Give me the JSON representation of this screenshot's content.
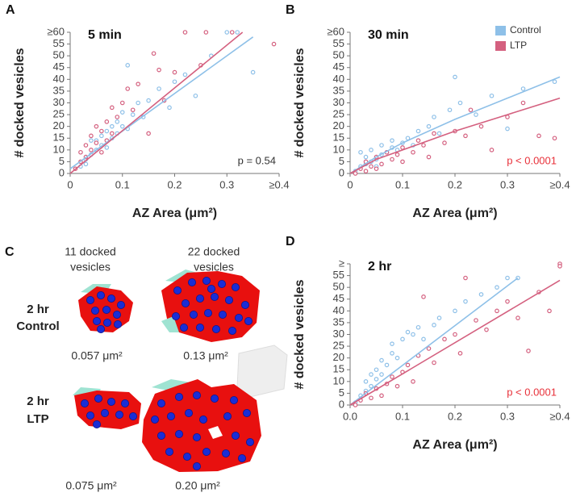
{
  "chart_data": [
    {
      "type": "scatter",
      "panel": "A",
      "title": "5 min",
      "annotation": "p = 0.54",
      "annotation_color": "#333333",
      "x_label": "AZ Area (μm²)",
      "y_label": "# docked vesicles",
      "xlim": [
        0,
        0.4
      ],
      "ylim": [
        0,
        60
      ],
      "xticks": [
        0,
        0.1,
        0.2,
        0.3,
        {
          "value": 0.4,
          "label": "≥0.4"
        }
      ],
      "yticks": [
        0,
        5,
        10,
        15,
        20,
        25,
        30,
        35,
        40,
        45,
        50,
        55,
        {
          "value": 60,
          "label": "≥60"
        }
      ],
      "series": [
        {
          "color": "#8ec0e8",
          "x": [
            0.02,
            0.03,
            0.04,
            0.05,
            0.05,
            0.06,
            0.06,
            0.07,
            0.07,
            0.08,
            0.08,
            0.09,
            0.09,
            0.1,
            0.1,
            0.11,
            0.11,
            0.12,
            0.13,
            0.14,
            0.15,
            0.17,
            0.19,
            0.2,
            0.22,
            0.24,
            0.27,
            0.3,
            0.32,
            0.35,
            0.04,
            0.03
          ],
          "values": [
            3,
            6,
            8,
            10,
            14,
            12,
            16,
            11,
            18,
            15,
            20,
            22,
            17,
            20,
            26,
            19,
            46,
            25,
            30,
            24,
            31,
            36,
            28,
            39,
            42,
            33,
            50,
            60,
            60,
            43,
            14,
            4
          ]
        },
        {
          "color": "#d4607f",
          "x": [
            0.01,
            0.02,
            0.02,
            0.03,
            0.03,
            0.04,
            0.04,
            0.05,
            0.05,
            0.06,
            0.06,
            0.07,
            0.07,
            0.08,
            0.08,
            0.09,
            0.1,
            0.11,
            0.12,
            0.13,
            0.15,
            0.16,
            0.17,
            0.18,
            0.2,
            0.22,
            0.25,
            0.26,
            0.31,
            0.39
          ],
          "values": [
            2,
            5,
            9,
            7,
            12,
            10,
            16,
            13,
            20,
            18,
            9,
            22,
            14,
            17,
            28,
            24,
            30,
            36,
            27,
            38,
            17,
            51,
            44,
            31,
            43,
            60,
            46,
            60,
            60,
            55
          ]
        }
      ],
      "fits": [
        {
          "color": "#8ec0e8",
          "x": [
            0,
            0.35
          ],
          "values": [
            2,
            58
          ]
        },
        {
          "color": "#d4607f",
          "x": [
            0,
            0.33
          ],
          "values": [
            0,
            60
          ]
        }
      ]
    },
    {
      "type": "scatter",
      "panel": "B",
      "title": "30 min",
      "annotation": "p < 0.0001",
      "annotation_color": "#e8313a",
      "x_label": "AZ Area (μm²)",
      "y_label": "# docked vesicles",
      "xlim": [
        0,
        0.4
      ],
      "ylim": [
        0,
        60
      ],
      "xticks": [
        0,
        0.1,
        0.2,
        0.3,
        {
          "value": 0.4,
          "label": "≥0.4"
        }
      ],
      "yticks": [
        0,
        5,
        10,
        15,
        20,
        25,
        30,
        35,
        40,
        45,
        50,
        55,
        {
          "value": 60,
          "label": "≥60"
        }
      ],
      "legend": "upper right",
      "series": [
        {
          "name": "Control",
          "color": "#8ec0e8",
          "x": [
            0.01,
            0.02,
            0.02,
            0.03,
            0.03,
            0.04,
            0.04,
            0.05,
            0.05,
            0.06,
            0.06,
            0.07,
            0.08,
            0.08,
            0.09,
            0.1,
            0.11,
            0.12,
            0.13,
            0.15,
            0.16,
            0.17,
            0.19,
            0.2,
            0.21,
            0.24,
            0.27,
            0.3,
            0.33,
            0.39
          ],
          "values": [
            1,
            3,
            9,
            4,
            7,
            5,
            10,
            6,
            3,
            8,
            12,
            9,
            11,
            14,
            10,
            13,
            15,
            12,
            18,
            20,
            24,
            17,
            27,
            41,
            30,
            25,
            33,
            19,
            36,
            39
          ]
        },
        {
          "name": "LTP",
          "color": "#d4607f",
          "x": [
            0.01,
            0.02,
            0.03,
            0.03,
            0.04,
            0.05,
            0.05,
            0.06,
            0.07,
            0.08,
            0.09,
            0.1,
            0.1,
            0.12,
            0.13,
            0.14,
            0.15,
            0.16,
            0.18,
            0.2,
            0.22,
            0.23,
            0.25,
            0.27,
            0.3,
            0.33,
            0.36,
            0.39
          ],
          "values": [
            0,
            2,
            5,
            1,
            3,
            7,
            2,
            4,
            9,
            6,
            8,
            5,
            11,
            9,
            14,
            12,
            7,
            17,
            13,
            18,
            16,
            27,
            20,
            10,
            24,
            30,
            16,
            15
          ]
        }
      ],
      "fits": [
        {
          "color": "#8ec0e8",
          "x": [
            0,
            0.05,
            0.1,
            0.2,
            0.3,
            0.4
          ],
          "values": [
            0,
            7,
            13,
            23,
            32,
            41
          ]
        },
        {
          "color": "#d4607f",
          "x": [
            0,
            0.05,
            0.1,
            0.2,
            0.3,
            0.4
          ],
          "values": [
            0,
            6,
            10,
            18,
            25,
            32
          ]
        }
      ]
    },
    {
      "type": "scatter",
      "panel": "D",
      "title": "2 hr",
      "annotation": "p < 0.0001",
      "annotation_color": "#e8313a",
      "x_label": "AZ Area (μm²)",
      "y_label": "# docked vesicles",
      "xlim": [
        0,
        0.4
      ],
      "ylim": [
        0,
        60
      ],
      "xticks": [
        {
          "value": 0,
          "label": "0.0"
        },
        0.1,
        0.2,
        0.3,
        {
          "value": 0.4,
          "label": "≥0.4"
        }
      ],
      "yticks": [
        0,
        5,
        10,
        15,
        20,
        25,
        30,
        35,
        40,
        45,
        50,
        55,
        {
          "value": 60,
          "label": "≥"
        }
      ],
      "series": [
        {
          "color": "#8ec0e8",
          "x": [
            0.01,
            0.02,
            0.03,
            0.03,
            0.04,
            0.04,
            0.05,
            0.05,
            0.06,
            0.06,
            0.07,
            0.08,
            0.08,
            0.09,
            0.1,
            0.11,
            0.12,
            0.13,
            0.14,
            0.16,
            0.17,
            0.2,
            0.22,
            0.25,
            0.28,
            0.3,
            0.32
          ],
          "values": [
            1,
            4,
            6,
            10,
            8,
            13,
            11,
            15,
            13,
            19,
            17,
            22,
            26,
            20,
            28,
            31,
            30,
            33,
            28,
            34,
            37,
            40,
            44,
            47,
            50,
            54,
            54
          ]
        },
        {
          "color": "#d4607f",
          "x": [
            0.01,
            0.02,
            0.03,
            0.04,
            0.05,
            0.06,
            0.07,
            0.08,
            0.09,
            0.1,
            0.11,
            0.12,
            0.13,
            0.14,
            0.15,
            0.16,
            0.18,
            0.2,
            0.21,
            0.22,
            0.24,
            0.26,
            0.28,
            0.3,
            0.32,
            0.34,
            0.36,
            0.38,
            0.4,
            0.4
          ],
          "values": [
            0,
            2,
            5,
            3,
            7,
            4,
            9,
            12,
            8,
            14,
            17,
            10,
            21,
            46,
            24,
            18,
            28,
            30,
            22,
            54,
            36,
            32,
            40,
            44,
            37,
            23,
            48,
            40,
            60,
            59
          ]
        }
      ],
      "fits": [
        {
          "color": "#8ec0e8",
          "x": [
            0,
            0.32
          ],
          "values": [
            0,
            54
          ]
        },
        {
          "color": "#d4607f",
          "x": [
            0,
            0.4
          ],
          "values": [
            0,
            53
          ]
        }
      ]
    }
  ],
  "panel_c": {
    "label": "C",
    "columns": [
      [
        "11 docked",
        "vesicles"
      ],
      [
        "22 docked",
        "vesicles"
      ]
    ],
    "rows": [
      [
        "2 hr",
        "Control"
      ],
      [
        "2 hr",
        "LTP"
      ]
    ],
    "areas": [
      [
        "0.057 μm²",
        "0.13 μm²"
      ],
      [
        "0.075 μm²",
        "0.20 μm²"
      ]
    ]
  }
}
